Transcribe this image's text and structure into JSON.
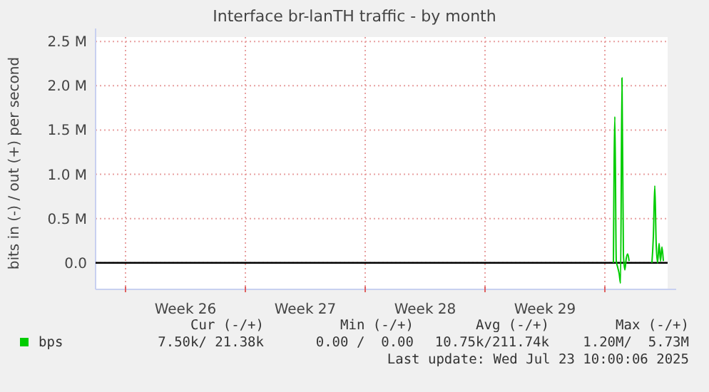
{
  "chart_data": {
    "type": "line",
    "title": "Interface br-lanTH traffic - by month",
    "ylabel": "bits in (-) / out (+) per second",
    "x": [
      "2025-07-21T12:00",
      "2025-07-21T14:00",
      "2025-07-21T16:00",
      "2025-07-21T18:00",
      "2025-07-21T20:00",
      "2025-07-21T22:00",
      "2025-07-22T00:00",
      "2025-07-22T02:00",
      "2025-07-22T04:00",
      "2025-07-22T06:00",
      "2025-07-22T08:00",
      "2025-07-22T10:00",
      "2025-07-22T12:00",
      "2025-07-23T18:00",
      "2025-07-23T20:00",
      "2025-07-23T22:00",
      "2025-07-24T00:00",
      "2025-07-24T02:00",
      "2025-07-24T04:00",
      "2025-07-24T06:00",
      "2025-07-24T08:00",
      "2025-07-24T10:00"
    ],
    "series": [
      {
        "name": "bps",
        "color": "#00cc00",
        "values": [
          0,
          1650000,
          20000,
          -50000,
          -120000,
          -230000,
          2090000,
          100000,
          -80000,
          50000,
          100000,
          20000,
          null,
          0,
          300000,
          870000,
          200000,
          0,
          220000,
          20000,
          180000,
          20000
        ]
      }
    ],
    "xlim": [
      "2025-06-21T06:00",
      "2025-07-24T16:00"
    ],
    "xticks": [
      {
        "value": "2025-06-23",
        "label": null
      },
      {
        "value": "2025-06-26T12:00",
        "label": "Week 26"
      },
      {
        "value": "2025-06-30",
        "label": null
      },
      {
        "value": "2025-07-03T12:00",
        "label": "Week 27"
      },
      {
        "value": "2025-07-07",
        "label": null
      },
      {
        "value": "2025-07-10T12:00",
        "label": "Week 28"
      },
      {
        "value": "2025-07-14",
        "label": null
      },
      {
        "value": "2025-07-17T12:00",
        "label": "Week 29"
      },
      {
        "value": "2025-07-21",
        "label": null
      }
    ],
    "ylim": [
      -300000,
      2550000
    ],
    "yticks": [
      {
        "value": 0,
        "label": "0.0"
      },
      {
        "value": 500000,
        "label": "0.5 M"
      },
      {
        "value": 1000000,
        "label": "1.0 M"
      },
      {
        "value": 1500000,
        "label": "1.5 M"
      },
      {
        "value": 2000000,
        "label": "2.0 M"
      },
      {
        "value": 2500000,
        "label": "2.5 M"
      }
    ],
    "ref_lines": [
      {
        "axis": "y",
        "value": 0,
        "color": "#000000"
      }
    ],
    "grid": true,
    "legend": "bottom left",
    "annotations": [
      "Cur (-/+)",
      "Min (-/+)",
      "Avg (-/+)",
      "Max (-/+)",
      "7.50k/ 21.38k",
      "0.00 /  0.00",
      "10.75k/211.74k",
      "1.20M/  5.73M",
      "Last update: Wed Jul 23 10:00:06 2025"
    ]
  }
}
